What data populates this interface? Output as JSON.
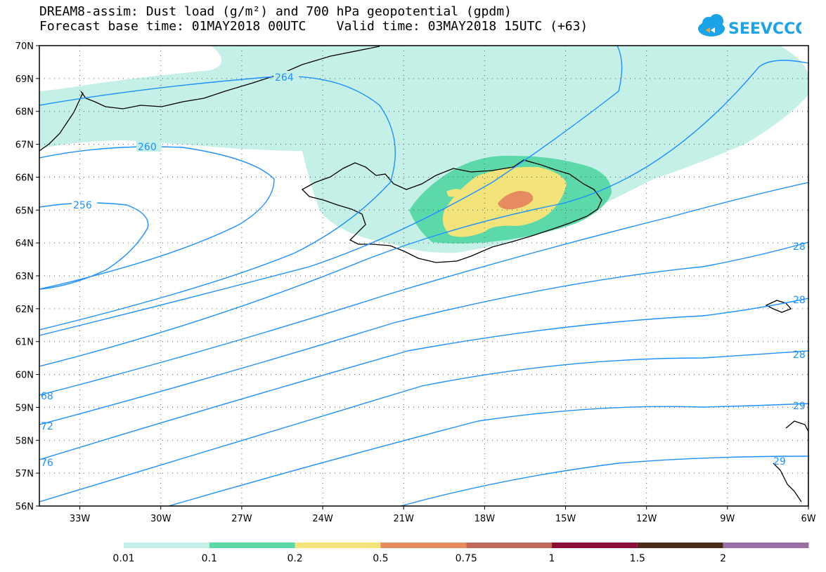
{
  "title_line1": "DREAM8-assim: Dust load (g/m²) and 700 hPa geopotential (gpdm)",
  "title_line2": "Forecast base time: 01MAY2018 00UTC    Valid time: 03MAY2018 15UTC (+63)",
  "logo_text": "SEEVCCC",
  "colors": {
    "contour": "#1e90ff",
    "dust": [
      "#c4f0e8",
      "#5cd9a8",
      "#f2e47a",
      "#e68a60",
      "#c06a58",
      "#8c0f38",
      "#4b2c1b",
      "#9a70a6"
    ]
  },
  "map": {
    "lon_range": [
      -34.5,
      -6
    ],
    "lat_range": [
      56,
      70
    ],
    "lon_ticks": [
      "33W",
      "30W",
      "27W",
      "24W",
      "21W",
      "18W",
      "15W",
      "12W",
      "9W",
      "6W"
    ],
    "lat_ticks": [
      "56N",
      "57N",
      "58N",
      "59N",
      "60N",
      "61N",
      "62N",
      "63N",
      "64N",
      "65N",
      "66N",
      "67N",
      "68N",
      "69N",
      "70N"
    ]
  },
  "contour_labels": [
    "264",
    "260",
    "256",
    "68",
    "72",
    "76",
    "28",
    "28",
    "28",
    "29",
    "29"
  ],
  "colorbar": {
    "labels": [
      "0.01",
      "0.1",
      "0.2",
      "0.5",
      "0.75",
      "1",
      "1.5",
      "2"
    ]
  }
}
